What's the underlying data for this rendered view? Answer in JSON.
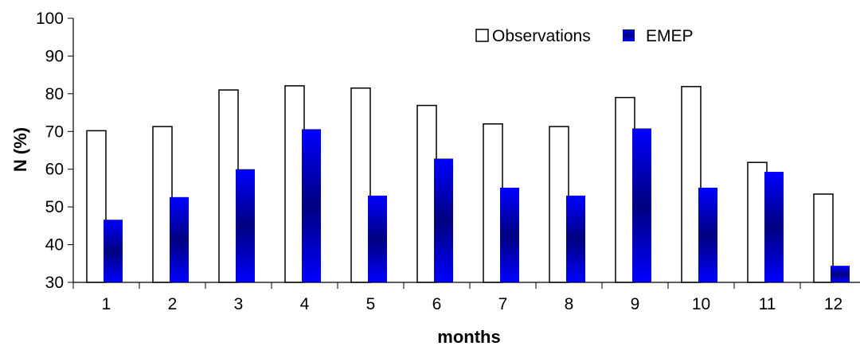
{
  "chart_data": {
    "type": "bar",
    "categories": [
      "1",
      "2",
      "3",
      "4",
      "5",
      "6",
      "7",
      "8",
      "9",
      "10",
      "11",
      "12"
    ],
    "series": [
      {
        "name": "Observations",
        "values": [
          70.2,
          71.3,
          81.0,
          82.1,
          81.5,
          76.9,
          72.0,
          71.3,
          79.0,
          81.9,
          61.8,
          53.4
        ],
        "color": "#ffffff",
        "stroke": "#000000"
      },
      {
        "name": "EMEP",
        "values": [
          46.6,
          52.6,
          60.0,
          70.6,
          53.0,
          62.8,
          55.1,
          53.0,
          70.8,
          55.1,
          59.3,
          34.4
        ],
        "color": "#0000ff",
        "gradient_center": "#000080"
      }
    ],
    "xlabel": "months",
    "ylabel": "N (%)",
    "ylim": [
      30,
      100
    ],
    "yticks": [
      "30",
      "40",
      "50",
      "60",
      "70",
      "80",
      "90",
      "100"
    ],
    "grid": false,
    "legend_position": "top-right"
  }
}
